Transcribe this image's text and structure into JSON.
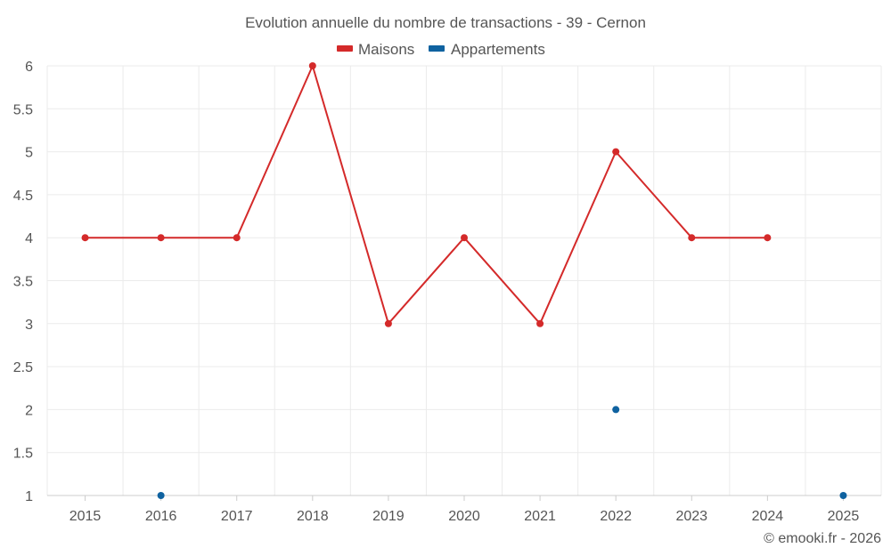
{
  "chart_data": {
    "type": "line",
    "title": "Evolution annuelle du nombre de transactions - 39 - Cernon",
    "categories": [
      "2015",
      "2016",
      "2017",
      "2018",
      "2019",
      "2020",
      "2021",
      "2022",
      "2023",
      "2024",
      "2025"
    ],
    "ylim": [
      1,
      6
    ],
    "yticks": [
      "1",
      "1.5",
      "2",
      "2.5",
      "3",
      "3.5",
      "4",
      "4.5",
      "5",
      "5.5",
      "6"
    ],
    "xlabel": "",
    "ylabel": "",
    "grid": true,
    "legend_position": "top-center",
    "series": [
      {
        "name": "Maisons",
        "color": "#d42a2a",
        "values": [
          4,
          4,
          4,
          6,
          3,
          4,
          3,
          5,
          4,
          4,
          null
        ],
        "connected": true
      },
      {
        "name": "Appartements",
        "color": "#0f62a0",
        "values": [
          null,
          1,
          null,
          null,
          null,
          null,
          null,
          2,
          null,
          null,
          1
        ],
        "connected": false
      }
    ]
  },
  "credit": "© emooki.fr - 2026"
}
